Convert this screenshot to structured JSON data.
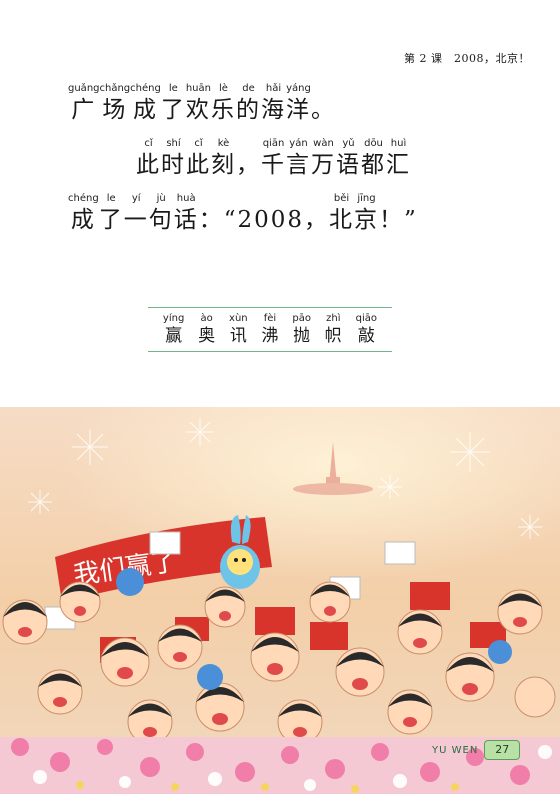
{
  "header": {
    "text": "第 2 课　2008，北京！"
  },
  "lines": [
    [
      {
        "py": "guǎng",
        "hz": "广"
      },
      {
        "py": "chǎng",
        "hz": "场"
      },
      {
        "py": "chéng",
        "hz": "成"
      },
      {
        "py": "le",
        "hz": "了"
      },
      {
        "py": "huān",
        "hz": "欢"
      },
      {
        "py": "lè",
        "hz": "乐"
      },
      {
        "py": "de",
        "hz": "的"
      },
      {
        "py": "hǎi",
        "hz": "海"
      },
      {
        "py": "yáng",
        "hz": "洋"
      },
      {
        "py": "",
        "hz": "。"
      }
    ],
    [
      {
        "py": "cǐ",
        "hz": "此"
      },
      {
        "py": "shí",
        "hz": "时"
      },
      {
        "py": "cǐ",
        "hz": "此"
      },
      {
        "py": "kè",
        "hz": "刻"
      },
      {
        "py": "",
        "hz": "，"
      },
      {
        "py": "qiān",
        "hz": "千"
      },
      {
        "py": "yán",
        "hz": "言"
      },
      {
        "py": "wàn",
        "hz": "万"
      },
      {
        "py": "yǔ",
        "hz": "语"
      },
      {
        "py": "dōu",
        "hz": "都"
      },
      {
        "py": "huì",
        "hz": "汇"
      }
    ],
    [
      {
        "py": "chéng",
        "hz": "成"
      },
      {
        "py": "le",
        "hz": "了"
      },
      {
        "py": "yí",
        "hz": "一"
      },
      {
        "py": "jù",
        "hz": "句"
      },
      {
        "py": "huà",
        "hz": "话"
      },
      {
        "py": "",
        "hz": "：“2008，"
      },
      {
        "py": "běi",
        "hz": "北"
      },
      {
        "py": "jīng",
        "hz": "京"
      },
      {
        "py": "",
        "hz": "！”"
      }
    ]
  ],
  "vocab": [
    {
      "py": "yíng",
      "hz": "赢"
    },
    {
      "py": "ào",
      "hz": "奥"
    },
    {
      "py": "xùn",
      "hz": "讯"
    },
    {
      "py": "fèi",
      "hz": "沸"
    },
    {
      "py": "pāo",
      "hz": "抛"
    },
    {
      "py": "zhì",
      "hz": "帜"
    },
    {
      "py": "qiāo",
      "hz": "敲"
    }
  ],
  "illustration": {
    "banner_text": "我们赢了"
  },
  "footer": {
    "label": "YU WEN",
    "page": "27"
  },
  "colors": {
    "rule_green": "#6fb88a",
    "page_badge": "#b9e0a5",
    "banner_red": "#d9342b"
  }
}
